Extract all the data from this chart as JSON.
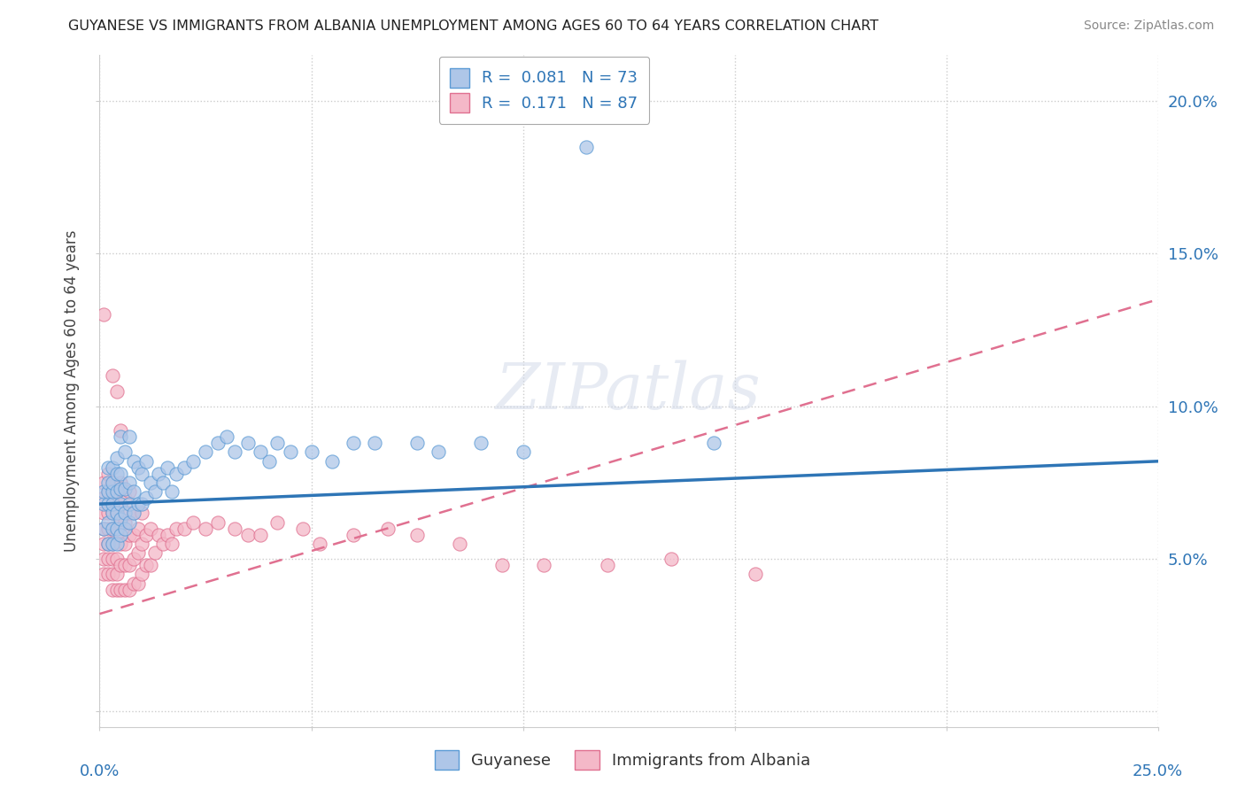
{
  "title": "GUYANESE VS IMMIGRANTS FROM ALBANIA UNEMPLOYMENT AMONG AGES 60 TO 64 YEARS CORRELATION CHART",
  "source": "Source: ZipAtlas.com",
  "ylabel": "Unemployment Among Ages 60 to 64 years",
  "ytick_labels": [
    "5.0%",
    "10.0%",
    "15.0%",
    "20.0%"
  ],
  "ytick_values": [
    0.05,
    0.1,
    0.15,
    0.2
  ],
  "xlim": [
    0.0,
    0.25
  ],
  "ylim": [
    -0.005,
    0.215
  ],
  "watermark": "ZIPatlas",
  "guyanese_color": "#aec6e8",
  "guyanese_edge": "#5b9bd5",
  "albania_color": "#f4b8c8",
  "albania_edge": "#e07090",
  "trend_blue_color": "#2e75b6",
  "trend_pink_color": "#e07090",
  "trend_pink_start_y": 0.032,
  "trend_pink_end_y": 0.135,
  "trend_blue_start_y": 0.068,
  "trend_blue_end_y": 0.082,
  "guyanese_x": [
    0.001,
    0.001,
    0.001,
    0.002,
    0.002,
    0.002,
    0.002,
    0.002,
    0.002,
    0.003,
    0.003,
    0.003,
    0.003,
    0.003,
    0.003,
    0.003,
    0.004,
    0.004,
    0.004,
    0.004,
    0.004,
    0.004,
    0.005,
    0.005,
    0.005,
    0.005,
    0.005,
    0.005,
    0.006,
    0.006,
    0.006,
    0.006,
    0.007,
    0.007,
    0.007,
    0.007,
    0.008,
    0.008,
    0.008,
    0.009,
    0.009,
    0.01,
    0.01,
    0.011,
    0.011,
    0.012,
    0.013,
    0.014,
    0.015,
    0.016,
    0.017,
    0.018,
    0.02,
    0.022,
    0.025,
    0.028,
    0.03,
    0.032,
    0.035,
    0.038,
    0.04,
    0.042,
    0.045,
    0.05,
    0.055,
    0.06,
    0.065,
    0.075,
    0.08,
    0.09,
    0.1,
    0.115,
    0.145
  ],
  "guyanese_y": [
    0.06,
    0.068,
    0.072,
    0.055,
    0.062,
    0.068,
    0.072,
    0.075,
    0.08,
    0.055,
    0.06,
    0.065,
    0.068,
    0.072,
    0.075,
    0.08,
    0.055,
    0.06,
    0.065,
    0.072,
    0.078,
    0.083,
    0.058,
    0.063,
    0.068,
    0.073,
    0.078,
    0.09,
    0.06,
    0.065,
    0.073,
    0.085,
    0.062,
    0.068,
    0.075,
    0.09,
    0.065,
    0.072,
    0.082,
    0.068,
    0.08,
    0.068,
    0.078,
    0.07,
    0.082,
    0.075,
    0.072,
    0.078,
    0.075,
    0.08,
    0.072,
    0.078,
    0.08,
    0.082,
    0.085,
    0.088,
    0.09,
    0.085,
    0.088,
    0.085,
    0.082,
    0.088,
    0.085,
    0.085,
    0.082,
    0.088,
    0.088,
    0.088,
    0.085,
    0.088,
    0.085,
    0.185,
    0.088
  ],
  "albania_x": [
    0.001,
    0.001,
    0.001,
    0.001,
    0.001,
    0.001,
    0.001,
    0.001,
    0.002,
    0.002,
    0.002,
    0.002,
    0.002,
    0.002,
    0.002,
    0.003,
    0.003,
    0.003,
    0.003,
    0.003,
    0.003,
    0.003,
    0.003,
    0.003,
    0.004,
    0.004,
    0.004,
    0.004,
    0.004,
    0.004,
    0.004,
    0.005,
    0.005,
    0.005,
    0.005,
    0.005,
    0.005,
    0.005,
    0.006,
    0.006,
    0.006,
    0.006,
    0.006,
    0.007,
    0.007,
    0.007,
    0.007,
    0.007,
    0.008,
    0.008,
    0.008,
    0.008,
    0.009,
    0.009,
    0.009,
    0.01,
    0.01,
    0.01,
    0.011,
    0.011,
    0.012,
    0.012,
    0.013,
    0.014,
    0.015,
    0.016,
    0.017,
    0.018,
    0.02,
    0.022,
    0.025,
    0.028,
    0.032,
    0.035,
    0.038,
    0.042,
    0.048,
    0.052,
    0.06,
    0.068,
    0.075,
    0.085,
    0.095,
    0.105,
    0.12,
    0.135,
    0.155
  ],
  "albania_y": [
    0.045,
    0.05,
    0.055,
    0.06,
    0.065,
    0.07,
    0.075,
    0.13,
    0.045,
    0.05,
    0.055,
    0.06,
    0.065,
    0.072,
    0.078,
    0.04,
    0.045,
    0.05,
    0.055,
    0.06,
    0.065,
    0.07,
    0.075,
    0.11,
    0.04,
    0.045,
    0.05,
    0.058,
    0.065,
    0.072,
    0.105,
    0.04,
    0.048,
    0.055,
    0.062,
    0.068,
    0.075,
    0.092,
    0.04,
    0.048,
    0.055,
    0.062,
    0.07,
    0.04,
    0.048,
    0.058,
    0.065,
    0.072,
    0.042,
    0.05,
    0.058,
    0.065,
    0.042,
    0.052,
    0.06,
    0.045,
    0.055,
    0.065,
    0.048,
    0.058,
    0.048,
    0.06,
    0.052,
    0.058,
    0.055,
    0.058,
    0.055,
    0.06,
    0.06,
    0.062,
    0.06,
    0.062,
    0.06,
    0.058,
    0.058,
    0.062,
    0.06,
    0.055,
    0.058,
    0.06,
    0.058,
    0.055,
    0.048,
    0.048,
    0.048,
    0.05,
    0.045
  ]
}
